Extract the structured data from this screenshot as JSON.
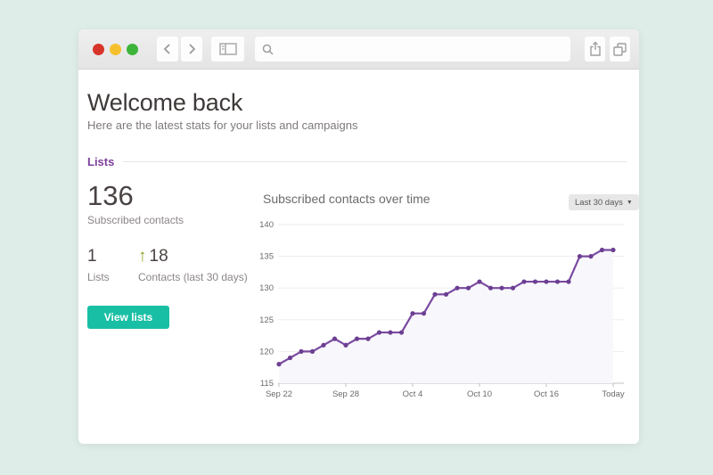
{
  "browser": {
    "search_value": ""
  },
  "page": {
    "title": "Welcome back",
    "subtitle": "Here are the latest stats for your lists and campaigns"
  },
  "lists_section": {
    "heading": "Lists",
    "stats": {
      "subscribed_count": "136",
      "subscribed_label": "Subscribed contacts",
      "lists_count": "1",
      "lists_label": "Lists",
      "growth_arrow": "↑",
      "growth_value": "18",
      "growth_label": "Contacts (last 30 days)"
    },
    "view_lists_button": "View lists"
  },
  "chart_panel": {
    "title": "Subscribed contacts over time",
    "range_dropdown": "Last 30 days",
    "caret": "▼"
  },
  "chart_data": {
    "type": "line",
    "title": "Subscribed contacts over time",
    "x_start_label": "Sep 22",
    "x_tick_labels": [
      "Sep 22",
      "Sep 28",
      "Oct 4",
      "Oct 10",
      "Oct 16",
      "Today"
    ],
    "x_tick_positions": [
      0,
      6,
      12,
      18,
      24,
      30
    ],
    "values": [
      118,
      119,
      120,
      120,
      121,
      122,
      121,
      122,
      122,
      123,
      123,
      123,
      126,
      126,
      129,
      129,
      130,
      130,
      131,
      130,
      130,
      130,
      131,
      131,
      131,
      131,
      131,
      135,
      135,
      136,
      136
    ],
    "ylim": [
      115,
      140
    ],
    "y_ticks": [
      115,
      120,
      125,
      130,
      135,
      140
    ],
    "grid": true,
    "legend": "none",
    "line_color": "#7a4aa1",
    "point_color": "#6c3f92",
    "fill_color": "#f8f7fb",
    "grid_color": "#ededed",
    "axis_color": "#c2c2c2"
  },
  "colors": {
    "accent_purple": "#7d3f9d",
    "accent_teal": "#19bfa4",
    "growth_green": "#8ea321",
    "background_mint": "#deede7"
  }
}
